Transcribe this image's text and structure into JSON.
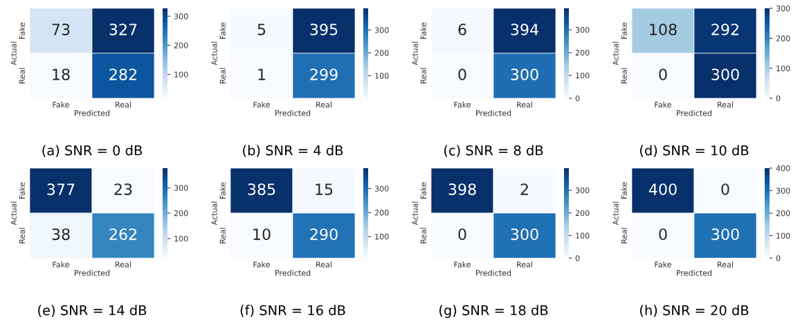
{
  "chart_data": [
    {
      "type": "heatmap",
      "title": "(a) SNR = 0 dB",
      "xlabel": "Predicted",
      "ylabel": "Actual",
      "categories": [
        "Fake",
        "Real"
      ],
      "y_categories": [
        "Fake",
        "Real"
      ],
      "cells": [
        [
          73,
          327
        ],
        [
          18,
          282
        ]
      ],
      "clim": [
        18,
        327
      ],
      "cticks": [
        100,
        200,
        300
      ],
      "data_labels": true
    },
    {
      "type": "heatmap",
      "title": "(b) SNR = 4 dB",
      "xlabel": "Predicted",
      "ylabel": "Actual",
      "categories": [
        "Fake",
        "Real"
      ],
      "y_categories": [
        "Fake",
        "Real"
      ],
      "cells": [
        [
          5,
          395
        ],
        [
          1,
          299
        ]
      ],
      "clim": [
        1,
        395
      ],
      "cticks": [
        100,
        200,
        300
      ],
      "data_labels": true
    },
    {
      "type": "heatmap",
      "title": "(c) SNR = 8 dB",
      "xlabel": "Predicted",
      "ylabel": "Actual",
      "categories": [
        "Fake",
        "Real"
      ],
      "y_categories": [
        "Fake",
        "Real"
      ],
      "cells": [
        [
          6,
          394
        ],
        [
          0,
          300
        ]
      ],
      "clim": [
        0,
        394
      ],
      "cticks": [
        0,
        100,
        200,
        300
      ],
      "data_labels": true
    },
    {
      "type": "heatmap",
      "title": "(d) SNR = 10 dB",
      "xlabel": "Predicted",
      "ylabel": "Actual",
      "categories": [
        "Fake",
        "Real"
      ],
      "y_categories": [
        "Fake",
        "Real"
      ],
      "cells": [
        [
          108,
          292
        ],
        [
          0,
          300
        ]
      ],
      "clim": [
        0,
        300
      ],
      "cticks": [
        0,
        100,
        200,
        300
      ],
      "data_labels": true
    },
    {
      "type": "heatmap",
      "title": "(e) SNR = 14 dB",
      "xlabel": "Predicted",
      "ylabel": "Actual",
      "categories": [
        "Fake",
        "Real"
      ],
      "y_categories": [
        "Fake",
        "Real"
      ],
      "cells": [
        [
          377,
          23
        ],
        [
          38,
          262
        ]
      ],
      "clim": [
        23,
        377
      ],
      "cticks": [
        100,
        200,
        300
      ],
      "data_labels": true
    },
    {
      "type": "heatmap",
      "title": "(f) SNR = 16 dB",
      "xlabel": "Predicted",
      "ylabel": "Actual",
      "categories": [
        "Fake",
        "Real"
      ],
      "y_categories": [
        "Fake",
        "Real"
      ],
      "cells": [
        [
          385,
          15
        ],
        [
          10,
          290
        ]
      ],
      "clim": [
        10,
        385
      ],
      "cticks": [
        100,
        200,
        300
      ],
      "data_labels": true
    },
    {
      "type": "heatmap",
      "title": "(g) SNR = 18 dB",
      "xlabel": "Predicted",
      "ylabel": "Actual",
      "categories": [
        "Fake",
        "Real"
      ],
      "y_categories": [
        "Fake",
        "Real"
      ],
      "cells": [
        [
          398,
          2
        ],
        [
          0,
          300
        ]
      ],
      "clim": [
        0,
        398
      ],
      "cticks": [
        0,
        100,
        200,
        300
      ],
      "data_labels": true
    },
    {
      "type": "heatmap",
      "title": "(h) SNR = 20 dB",
      "xlabel": "Predicted",
      "ylabel": "Actual",
      "categories": [
        "Fake",
        "Real"
      ],
      "y_categories": [
        "Fake",
        "Real"
      ],
      "cells": [
        [
          400,
          0
        ],
        [
          0,
          300
        ]
      ],
      "clim": [
        0,
        400
      ],
      "cticks": [
        0,
        100,
        200,
        300,
        400
      ],
      "data_labels": true
    }
  ]
}
